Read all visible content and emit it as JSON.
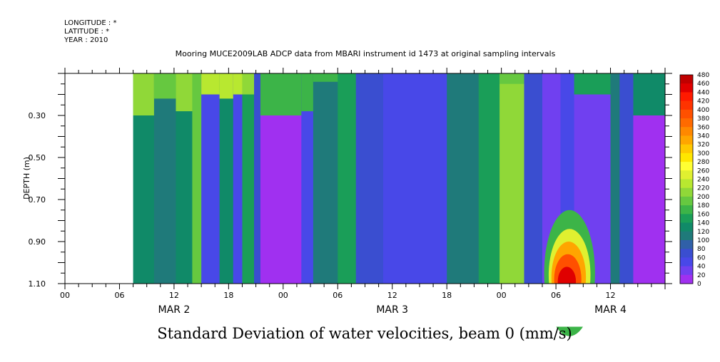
{
  "meta": {
    "longitude": "LONGITUDE : *",
    "latitude": "LATITUDE : *",
    "year": "YEAR : 2010"
  },
  "chart_data": {
    "type": "heatmap",
    "title": "Mooring MUCE2009LAB ADCP data from MBARI instrument id 1473 at original sampling intervals",
    "caption": "Standard Deviation of water velocities, beam 0 (mm/s)",
    "ylabel": "DEPTH (m)",
    "x_range_hours": [
      0,
      66
    ],
    "y_range_m": [
      0.1,
      1.1
    ],
    "y_inverted": true,
    "x_ticks": [
      {
        "h": 0,
        "label": "00"
      },
      {
        "h": 6,
        "label": "06"
      },
      {
        "h": 12,
        "label": "12"
      },
      {
        "h": 18,
        "label": "18"
      },
      {
        "h": 24,
        "label": "00"
      },
      {
        "h": 30,
        "label": "06"
      },
      {
        "h": 36,
        "label": "12"
      },
      {
        "h": 42,
        "label": "18"
      },
      {
        "h": 48,
        "label": "00"
      },
      {
        "h": 54,
        "label": "06"
      },
      {
        "h": 60,
        "label": "12"
      }
    ],
    "date_labels": [
      {
        "h": 12,
        "label": "MAR  2"
      },
      {
        "h": 36,
        "label": "MAR  3"
      },
      {
        "h": 60,
        "label": "MAR  4"
      }
    ],
    "y_ticks": [
      {
        "v": 0.3,
        "label": "0.30"
      },
      {
        "v": 0.5,
        "label": "0.50"
      },
      {
        "v": 0.7,
        "label": "0.70"
      },
      {
        "v": 0.9,
        "label": "0.90"
      },
      {
        "v": 1.1,
        "label": "1.10"
      }
    ],
    "colorbar": {
      "labels": [
        "480",
        "460",
        "440",
        "420",
        "400",
        "380",
        "360",
        "340",
        "320",
        "300",
        "280",
        "260",
        "240",
        "220",
        "200",
        "180",
        "160",
        "140",
        "120",
        "100",
        "80",
        "60",
        "40",
        "20",
        "0"
      ],
      "colors": [
        "#c00000",
        "#e00000",
        "#ff1a00",
        "#ff3300",
        "#ff5000",
        "#ff6a00",
        "#ff8800",
        "#ffa500",
        "#ffc800",
        "#ffe600",
        "#ffff33",
        "#e0f030",
        "#b8e830",
        "#90d838",
        "#66c840",
        "#3cb448",
        "#1a9e58",
        "#108a68",
        "#1f7a7a",
        "#3060a8",
        "#3a4ed0",
        "#4848e8",
        "#7040f0",
        "#a030f0",
        "#e010f0"
      ]
    },
    "data_start_hour": 7.5,
    "columns": [
      {
        "t0": 7.5,
        "t1": 9.8,
        "v": 130,
        "top": 210,
        "topDepth": 0.3
      },
      {
        "t0": 9.8,
        "t1": 12.2,
        "v": 110,
        "top": 200,
        "topDepth": 0.22
      },
      {
        "t0": 12.2,
        "t1": 14.0,
        "v": 140,
        "top": 215,
        "topDepth": 0.28
      },
      {
        "t0": 14.0,
        "t1": 15.0,
        "v": 200
      },
      {
        "t0": 15.0,
        "t1": 17.0,
        "v": 60,
        "top": 230,
        "topDepth": 0.2
      },
      {
        "t0": 17.0,
        "t1": 18.5,
        "v": 130,
        "top": 240,
        "topDepth": 0.22
      },
      {
        "t0": 18.5,
        "t1": 19.5,
        "v": 60,
        "top": 230,
        "topDepth": 0.2
      },
      {
        "t0": 19.5,
        "t1": 20.8,
        "v": 160,
        "top": 220,
        "topDepth": 0.2
      },
      {
        "t0": 20.8,
        "t1": 21.5,
        "v": 80
      },
      {
        "t0": 21.5,
        "t1": 26.0,
        "v": 15,
        "top": 170,
        "topDepth": 0.3
      },
      {
        "t0": 26.0,
        "t1": 27.3,
        "v": 60,
        "top": 170,
        "topDepth": 0.28
      },
      {
        "t0": 27.3,
        "t1": 30.0,
        "v": 120,
        "top": 180,
        "topDepth": 0.14
      },
      {
        "t0": 30.0,
        "t1": 32.0,
        "v": 150
      },
      {
        "t0": 32.0,
        "t1": 35.0,
        "v": 70
      },
      {
        "t0": 35.0,
        "t1": 37.0,
        "v": 50
      },
      {
        "t0": 37.0,
        "t1": 42.0,
        "v": 60
      },
      {
        "t0": 42.0,
        "t1": 45.5,
        "v": 110
      },
      {
        "t0": 45.5,
        "t1": 47.8,
        "v": 150
      },
      {
        "t0": 47.8,
        "t1": 50.5,
        "v": 220,
        "top": 200,
        "topDepth": 0.15
      },
      {
        "t0": 50.5,
        "t1": 52.5,
        "v": 70
      },
      {
        "t0": 52.5,
        "t1": 54.5,
        "v": 30
      },
      {
        "t0": 54.5,
        "t1": 56.0,
        "v": 60
      },
      {
        "t0": 56.0,
        "t1": 60.0,
        "v": 40,
        "top": 150,
        "topDepth": 0.2
      },
      {
        "t0": 60.0,
        "t1": 61.0,
        "v": 120
      },
      {
        "t0": 61.0,
        "t1": 62.5,
        "v": 70
      },
      {
        "t0": 62.5,
        "t1": 66.0,
        "v": 10,
        "top": 140,
        "topDepth": 0.3
      }
    ],
    "features": [
      {
        "t": 55.5,
        "depth": 1.05,
        "rt": 2.8,
        "rd": 0.3,
        "v": 170
      },
      {
        "t": 55.5,
        "depth": 1.06,
        "rt": 2.3,
        "rd": 0.22,
        "v": 260
      },
      {
        "t": 55.4,
        "depth": 1.07,
        "rt": 1.9,
        "rd": 0.17,
        "v": 340
      },
      {
        "t": 55.3,
        "depth": 1.08,
        "rt": 1.5,
        "rd": 0.12,
        "v": 400
      },
      {
        "t": 55.2,
        "depth": 1.09,
        "rt": 1.0,
        "rd": 0.07,
        "v": 460
      }
    ]
  }
}
